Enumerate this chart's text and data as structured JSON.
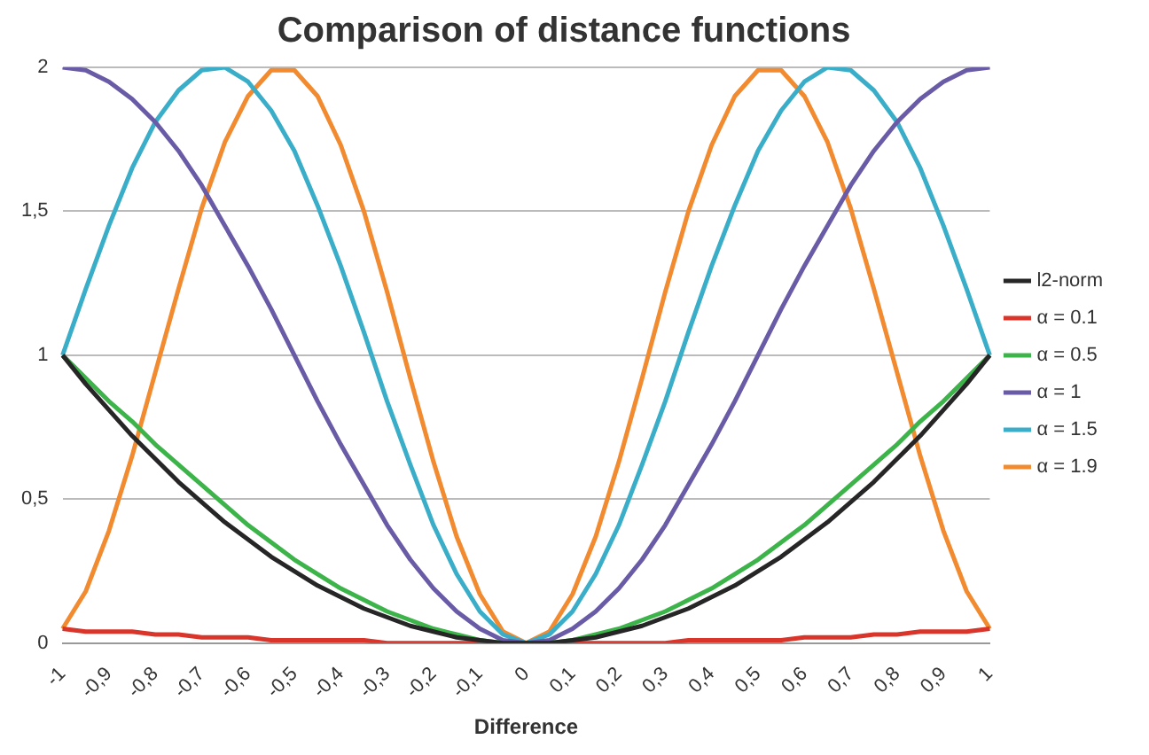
{
  "chart_data": {
    "type": "line",
    "title": "Comparison of distance functions",
    "xlabel": "Difference",
    "categories": [
      "-1",
      null,
      "-0,9",
      null,
      "-0,8",
      null,
      "-0,7",
      null,
      "-0,6",
      null,
      "-0,5",
      null,
      "-0,4",
      null,
      "-0,3",
      null,
      "-0,2",
      null,
      "-0,1",
      null,
      "0",
      null,
      "0,1",
      null,
      "0,2",
      null,
      "0,3",
      null,
      "0,4",
      null,
      "0,5",
      null,
      "0,6",
      null,
      "0,7",
      null,
      "0,8",
      null,
      "0,9",
      null,
      "1"
    ],
    "series": [
      {
        "name": "l2-norm",
        "color": "#262626",
        "values": [
          1,
          0.9,
          0.81,
          0.72,
          0.64,
          0.56,
          0.49,
          0.42,
          0.36,
          0.3,
          0.25,
          0.2,
          0.16,
          0.12,
          0.09,
          0.06,
          0.04,
          0.02,
          0.01,
          0,
          0,
          0,
          0.01,
          0.02,
          0.04,
          0.06,
          0.09,
          0.12,
          0.16,
          0.2,
          0.25,
          0.3,
          0.36,
          0.42,
          0.49,
          0.56,
          0.64,
          0.72,
          0.81,
          0.9,
          1
        ]
      },
      {
        "name": "α = 0.1",
        "color": "#d9352a",
        "values": [
          0.05,
          0.04,
          0.04,
          0.04,
          0.03,
          0.03,
          0.02,
          0.02,
          0.02,
          0.01,
          0.01,
          0.01,
          0.01,
          0.01,
          0,
          0,
          0,
          0,
          0,
          0,
          0,
          0,
          0,
          0,
          0,
          0,
          0,
          0.01,
          0.01,
          0.01,
          0.01,
          0.01,
          0.02,
          0.02,
          0.02,
          0.03,
          0.03,
          0.04,
          0.04,
          0.04,
          0.05
        ]
      },
      {
        "name": "α = 0.5",
        "color": "#3cb44a",
        "values": [
          1,
          0.92,
          0.84,
          0.77,
          0.69,
          0.62,
          0.55,
          0.48,
          0.41,
          0.35,
          0.29,
          0.24,
          0.19,
          0.15,
          0.11,
          0.08,
          0.05,
          0.03,
          0.01,
          0,
          0,
          0,
          0.01,
          0.03,
          0.05,
          0.08,
          0.11,
          0.15,
          0.19,
          0.24,
          0.29,
          0.35,
          0.41,
          0.48,
          0.55,
          0.62,
          0.69,
          0.77,
          0.84,
          0.92,
          1
        ]
      },
      {
        "name": "α = 1",
        "color": "#6a5ba6",
        "values": [
          2,
          1.99,
          1.95,
          1.89,
          1.81,
          1.71,
          1.59,
          1.45,
          1.31,
          1.16,
          1,
          0.84,
          0.69,
          0.55,
          0.41,
          0.29,
          0.19,
          0.11,
          0.05,
          0.01,
          0,
          0.01,
          0.05,
          0.11,
          0.19,
          0.29,
          0.41,
          0.55,
          0.69,
          0.84,
          1,
          1.16,
          1.31,
          1.45,
          1.59,
          1.71,
          1.81,
          1.89,
          1.95,
          1.99,
          2
        ]
      },
      {
        "name": "α = 1.5",
        "color": "#3aaec8",
        "values": [
          1,
          1.23,
          1.45,
          1.65,
          1.81,
          1.92,
          1.99,
          2,
          1.95,
          1.85,
          1.71,
          1.52,
          1.31,
          1.08,
          0.84,
          0.62,
          0.41,
          0.24,
          0.11,
          0.03,
          0,
          0.03,
          0.11,
          0.24,
          0.41,
          0.62,
          0.84,
          1.08,
          1.31,
          1.52,
          1.71,
          1.85,
          1.95,
          2,
          1.99,
          1.92,
          1.81,
          1.65,
          1.45,
          1.23,
          1
        ]
      },
      {
        "name": "α = 1.9",
        "color": "#f28b30",
        "values": [
          0.05,
          0.18,
          0.39,
          0.65,
          0.94,
          1.23,
          1.51,
          1.74,
          1.9,
          1.99,
          1.99,
          1.9,
          1.73,
          1.5,
          1.22,
          0.92,
          0.63,
          0.37,
          0.17,
          0.04,
          0,
          0.04,
          0.17,
          0.37,
          0.63,
          0.92,
          1.22,
          1.5,
          1.73,
          1.9,
          1.99,
          1.99,
          1.9,
          1.74,
          1.51,
          1.23,
          0.94,
          0.65,
          0.39,
          0.18,
          0.05
        ]
      }
    ],
    "ylim": [
      0,
      2
    ],
    "yticks": [
      {
        "value": 0,
        "label": "0"
      },
      {
        "value": 0.5,
        "label": "0,5"
      },
      {
        "value": 1,
        "label": "1"
      },
      {
        "value": 1.5,
        "label": "1,5"
      },
      {
        "value": 2,
        "label": "2"
      }
    ],
    "grid": "y",
    "legend": "right",
    "marker": "none",
    "line_style": "solid"
  }
}
